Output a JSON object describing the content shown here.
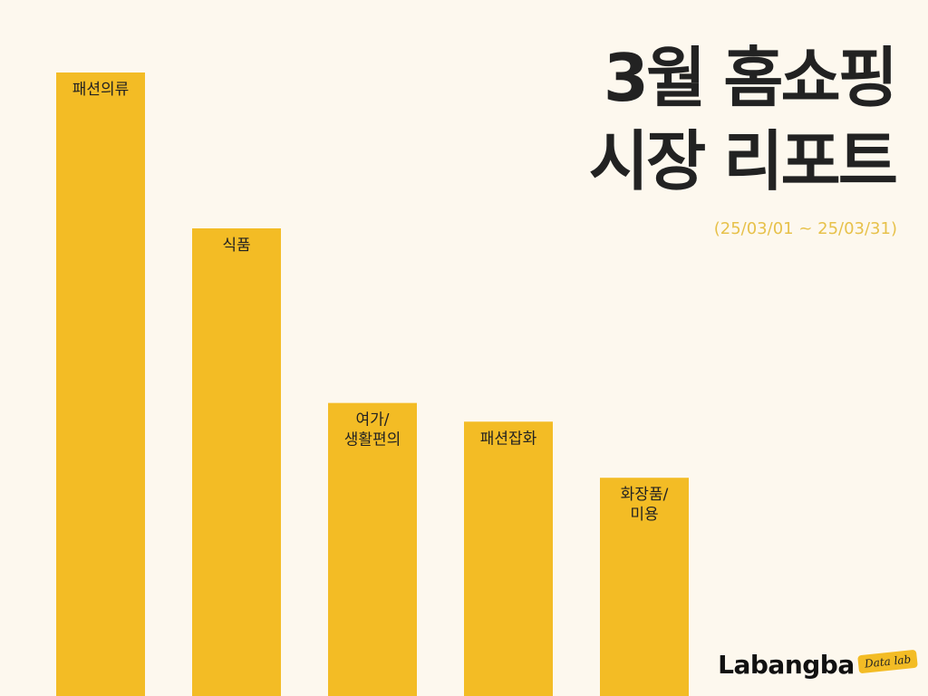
{
  "title": {
    "line1": "3월 홈쇼핑",
    "line2": "시장 리포트"
  },
  "period": "(25/03/01 ~ 25/03/31)",
  "logo": {
    "text": "Labangba",
    "badge": "Data lab"
  },
  "colors": {
    "bar": "#f3bc25",
    "background": "#fdf8ee",
    "title": "#222222",
    "period": "#e7c14a"
  },
  "chart_data": {
    "type": "bar",
    "title": "3월 홈쇼핑 시장 리포트",
    "xlabel": "",
    "ylabel": "",
    "categories": [
      "패션의류",
      "식품",
      "여가/생활편의",
      "패션잡화",
      "화장품/미용"
    ],
    "label_lines": [
      [
        "패션의류"
      ],
      [
        "식품"
      ],
      [
        "여가/",
        "생활편의"
      ],
      [
        "패션잡화"
      ],
      [
        "화장품/",
        "미용"
      ]
    ],
    "values": [
      100,
      75,
      47,
      44,
      35
    ],
    "ylim": [
      0,
      100
    ],
    "grid": false,
    "legend": "none"
  }
}
